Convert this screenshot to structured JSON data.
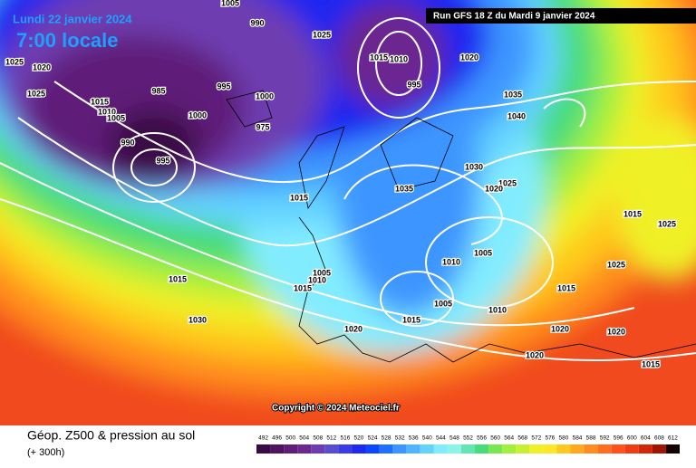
{
  "header": {
    "date": "Lundi 22 janvier 2024",
    "time": "7:00 locale",
    "run": "Run GFS 18 Z du Mardi 9 janvier 2024",
    "copyright": "Copyright © 2024 Meteociel.fr"
  },
  "footer": {
    "title": "Géop. Z500 & pression au sol",
    "lead": "(+ 300h)"
  },
  "scale": {
    "values": [
      492,
      496,
      500,
      504,
      508,
      512,
      516,
      520,
      524,
      528,
      532,
      536,
      540,
      544,
      548,
      552,
      556,
      560,
      564,
      568,
      572,
      576,
      580,
      584,
      588,
      592,
      596,
      600,
      604,
      608,
      612
    ],
    "colors": [
      "#3a0a44",
      "#4e1460",
      "#5e1e78",
      "#6c2890",
      "#6e3cb0",
      "#5a4cd0",
      "#3c3ce6",
      "#1e28f0",
      "#0a46ff",
      "#1e6eff",
      "#3c96ff",
      "#50b4ff",
      "#64d2ff",
      "#82ecff",
      "#8cf5e6",
      "#64e6b4",
      "#46dc78",
      "#78e650",
      "#a0f03c",
      "#c8f032",
      "#f0f028",
      "#ffe628",
      "#ffc81e",
      "#ffaa1e",
      "#ff8c1e",
      "#ff6e1e",
      "#ff501e",
      "#f03c14",
      "#d2280a",
      "#a01400",
      "#140000"
    ]
  },
  "isobars": [
    "1005",
    "990",
    "1025",
    "1025",
    "1020",
    "1025",
    "1015",
    "1010",
    "1005",
    "985",
    "990",
    "995",
    "1000",
    "1000",
    "975",
    "995",
    "1015",
    "1010",
    "1020",
    "1035",
    "1040",
    "1030",
    "1035",
    "1025",
    "1020",
    "1015",
    "1015",
    "1025",
    "1005",
    "1010",
    "1005",
    "1010",
    "1005",
    "1015",
    "1010",
    "1015",
    "1020",
    "1025",
    "1030",
    "1020",
    "1020",
    "1015",
    "1015",
    "1015",
    "1020",
    "995"
  ]
}
